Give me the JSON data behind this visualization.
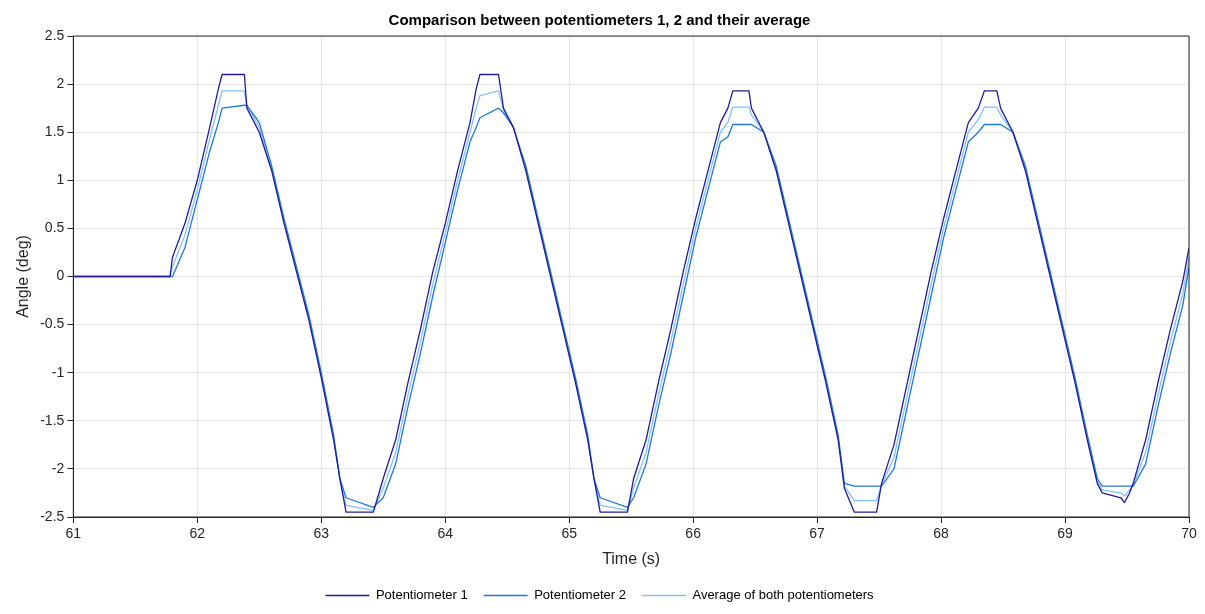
{
  "chart_data": {
    "type": "line",
    "title": "Comparison between potentiometers 1, 2 and their average",
    "xlabel": "Time (s)",
    "ylabel": "Angle (deg)",
    "x": [
      61.0,
      61.78,
      61.8,
      61.9,
      62.0,
      62.1,
      62.17,
      62.2,
      62.38,
      62.4,
      62.5,
      62.6,
      62.7,
      62.8,
      62.9,
      63.0,
      63.1,
      63.15,
      63.2,
      63.42,
      63.5,
      63.6,
      63.7,
      63.8,
      63.9,
      64.0,
      64.1,
      64.2,
      64.25,
      64.28,
      64.43,
      64.47,
      64.55,
      64.65,
      64.75,
      64.85,
      64.95,
      65.05,
      65.15,
      65.2,
      65.25,
      65.47,
      65.52,
      65.62,
      65.72,
      65.82,
      65.92,
      66.02,
      66.12,
      66.22,
      66.28,
      66.32,
      66.45,
      66.47,
      66.57,
      66.67,
      66.77,
      66.87,
      66.97,
      67.07,
      67.17,
      67.22,
      67.3,
      67.48,
      67.52,
      67.62,
      67.72,
      67.82,
      67.92,
      68.02,
      68.12,
      68.22,
      68.3,
      68.35,
      68.45,
      68.48,
      68.58,
      68.68,
      68.78,
      68.88,
      68.98,
      69.08,
      69.18,
      69.26,
      69.3,
      69.45,
      69.48,
      69.52,
      69.55,
      69.65,
      69.75,
      69.85,
      69.95,
      70.0
    ],
    "series": [
      {
        "name": "Potentiometer 1",
        "color": "#231b9b",
        "values": [
          0,
          0,
          0.2,
          0.55,
          1.0,
          1.55,
          1.95,
          2.1,
          2.1,
          1.75,
          1.5,
          1.1,
          0.55,
          0.05,
          -0.45,
          -1.05,
          -1.7,
          -2.1,
          -2.45,
          -2.45,
          -2.1,
          -1.7,
          -1.1,
          -0.55,
          0.05,
          0.55,
          1.1,
          1.6,
          1.95,
          2.1,
          2.1,
          1.75,
          1.55,
          1.1,
          0.55,
          0.0,
          -0.55,
          -1.1,
          -1.7,
          -2.1,
          -2.45,
          -2.45,
          -2.1,
          -1.7,
          -1.1,
          -0.55,
          0.05,
          0.6,
          1.1,
          1.6,
          1.75,
          1.93,
          1.93,
          1.75,
          1.5,
          1.1,
          0.55,
          0.0,
          -0.55,
          -1.1,
          -1.7,
          -2.2,
          -2.45,
          -2.45,
          -2.15,
          -1.75,
          -1.15,
          -0.55,
          0.05,
          0.6,
          1.1,
          1.6,
          1.75,
          1.93,
          1.93,
          1.75,
          1.5,
          1.1,
          0.55,
          0.0,
          -0.55,
          -1.1,
          -1.7,
          -2.15,
          -2.25,
          -2.3,
          -2.35,
          -2.25,
          -2.15,
          -1.7,
          -1.1,
          -0.55,
          -0.05,
          0.3
        ]
      },
      {
        "name": "Potentiometer 2",
        "color": "#1f78d8",
        "values": [
          0,
          0,
          0,
          0.3,
          0.8,
          1.3,
          1.6,
          1.75,
          1.78,
          1.78,
          1.6,
          1.15,
          0.6,
          0.1,
          -0.4,
          -1.0,
          -1.65,
          -2.1,
          -2.3,
          -2.4,
          -2.3,
          -1.95,
          -1.35,
          -0.8,
          -0.2,
          0.35,
          0.9,
          1.4,
          1.55,
          1.65,
          1.75,
          1.7,
          1.55,
          1.15,
          0.6,
          0.05,
          -0.5,
          -1.05,
          -1.65,
          -2.1,
          -2.3,
          -2.4,
          -2.3,
          -1.95,
          -1.35,
          -0.8,
          -0.2,
          0.4,
          0.9,
          1.4,
          1.45,
          1.58,
          1.58,
          1.58,
          1.5,
          1.15,
          0.6,
          0.05,
          -0.5,
          -1.05,
          -1.65,
          -2.15,
          -2.18,
          -2.18,
          -2.18,
          -2.0,
          -1.4,
          -0.8,
          -0.2,
          0.4,
          0.9,
          1.4,
          1.5,
          1.58,
          1.58,
          1.58,
          1.5,
          1.15,
          0.6,
          0.05,
          -0.5,
          -1.05,
          -1.65,
          -2.1,
          -2.18,
          -2.18,
          -2.18,
          -2.18,
          -2.18,
          -1.95,
          -1.35,
          -0.8,
          -0.3,
          0.1
        ]
      },
      {
        "name": "Average of both potentiometers",
        "color": "#82c0fa",
        "values": [
          0,
          0,
          0.1,
          0.43,
          0.9,
          1.43,
          1.78,
          1.93,
          1.93,
          1.78,
          1.55,
          1.12,
          0.58,
          0.08,
          -0.43,
          -1.03,
          -1.68,
          -2.1,
          -2.38,
          -2.43,
          -2.2,
          -1.83,
          -1.23,
          -0.68,
          -0.08,
          0.45,
          1.0,
          1.5,
          1.75,
          1.88,
          1.93,
          1.73,
          1.55,
          1.12,
          0.58,
          0.03,
          -0.53,
          -1.08,
          -1.68,
          -2.1,
          -2.38,
          -2.43,
          -2.2,
          -1.83,
          -1.23,
          -0.68,
          -0.08,
          0.5,
          1.0,
          1.5,
          1.6,
          1.76,
          1.76,
          1.68,
          1.5,
          1.12,
          0.58,
          0.03,
          -0.53,
          -1.08,
          -1.68,
          -2.18,
          -2.33,
          -2.33,
          -2.17,
          -1.88,
          -1.28,
          -0.68,
          -0.08,
          0.5,
          1.0,
          1.5,
          1.63,
          1.76,
          1.76,
          1.68,
          1.5,
          1.12,
          0.58,
          0.03,
          -0.53,
          -1.08,
          -1.68,
          -2.13,
          -2.22,
          -2.25,
          -2.28,
          -2.22,
          -2.17,
          -1.83,
          -1.23,
          -0.68,
          -0.18,
          0.2
        ]
      }
    ],
    "xlim": [
      61,
      70
    ],
    "xticks": [
      61,
      62,
      63,
      64,
      65,
      66,
      67,
      68,
      69,
      70
    ],
    "ylim": [
      -2.5,
      2.5
    ],
    "yticks": [
      -2.5,
      -2,
      -1.5,
      -1,
      -0.5,
      0,
      0.5,
      1,
      1.5,
      2,
      2.5
    ],
    "grid": true,
    "legend": "bottom",
    "marker": "none",
    "line_style": "solid"
  }
}
